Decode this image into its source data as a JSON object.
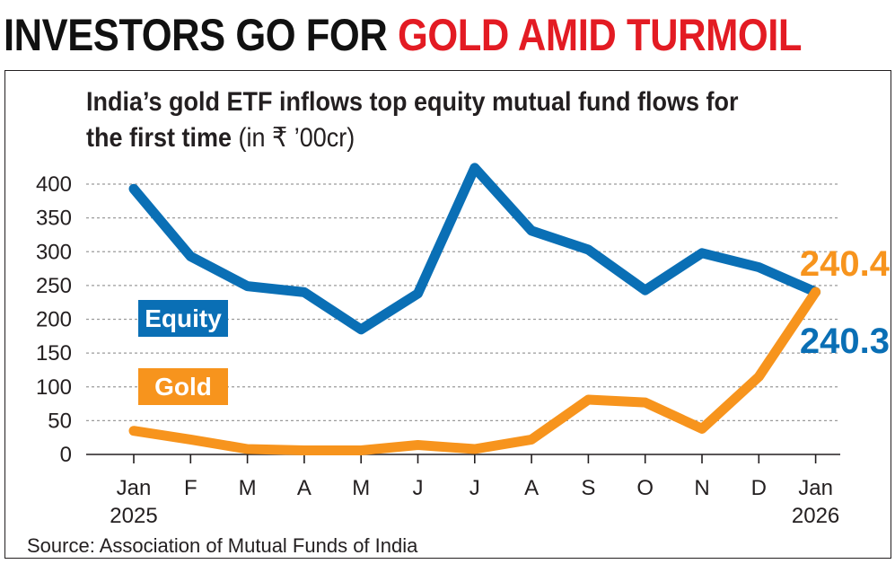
{
  "headline": {
    "part1": "INVESTORS GO FOR ",
    "part2": "GOLD AMID TURMOIL"
  },
  "subtitle": {
    "bold": "India’s gold ETF inflows top equity mutual fund flows for the first time",
    "unit": "(in ₹ ’00cr)"
  },
  "source": "Source: Association of Mutual Funds of India",
  "colors": {
    "equity": "#0a6fb5",
    "gold": "#f7941d",
    "headline_red": "#e31b23",
    "text": "#231f20",
    "grid": "#9b9b9b"
  },
  "chart_data": {
    "type": "line",
    "title": "India’s gold ETF inflows top equity mutual fund flows for the first time",
    "unit": "₹ ’00cr",
    "categories": [
      "Jan|2025",
      "F",
      "M",
      "A",
      "M",
      "J",
      "J",
      "A",
      "S",
      "O",
      "N",
      "D",
      "Jan|2026"
    ],
    "yticks": [
      0,
      50,
      100,
      150,
      200,
      250,
      300,
      350,
      400
    ],
    "ylim": [
      0,
      420
    ],
    "grid": true,
    "series": [
      {
        "name": "Equity",
        "color": "#0a6fb5",
        "values": [
          393,
          293,
          249,
          240,
          185,
          238,
          424,
          331,
          303,
          243,
          298,
          277,
          240.3
        ],
        "end_label": "240.3"
      },
      {
        "name": "Gold",
        "color": "#f7941d",
        "values": [
          35,
          22,
          8,
          6,
          6,
          14,
          8,
          22,
          81,
          77,
          38,
          115,
          240.4
        ],
        "end_label": "240.4"
      }
    ]
  }
}
